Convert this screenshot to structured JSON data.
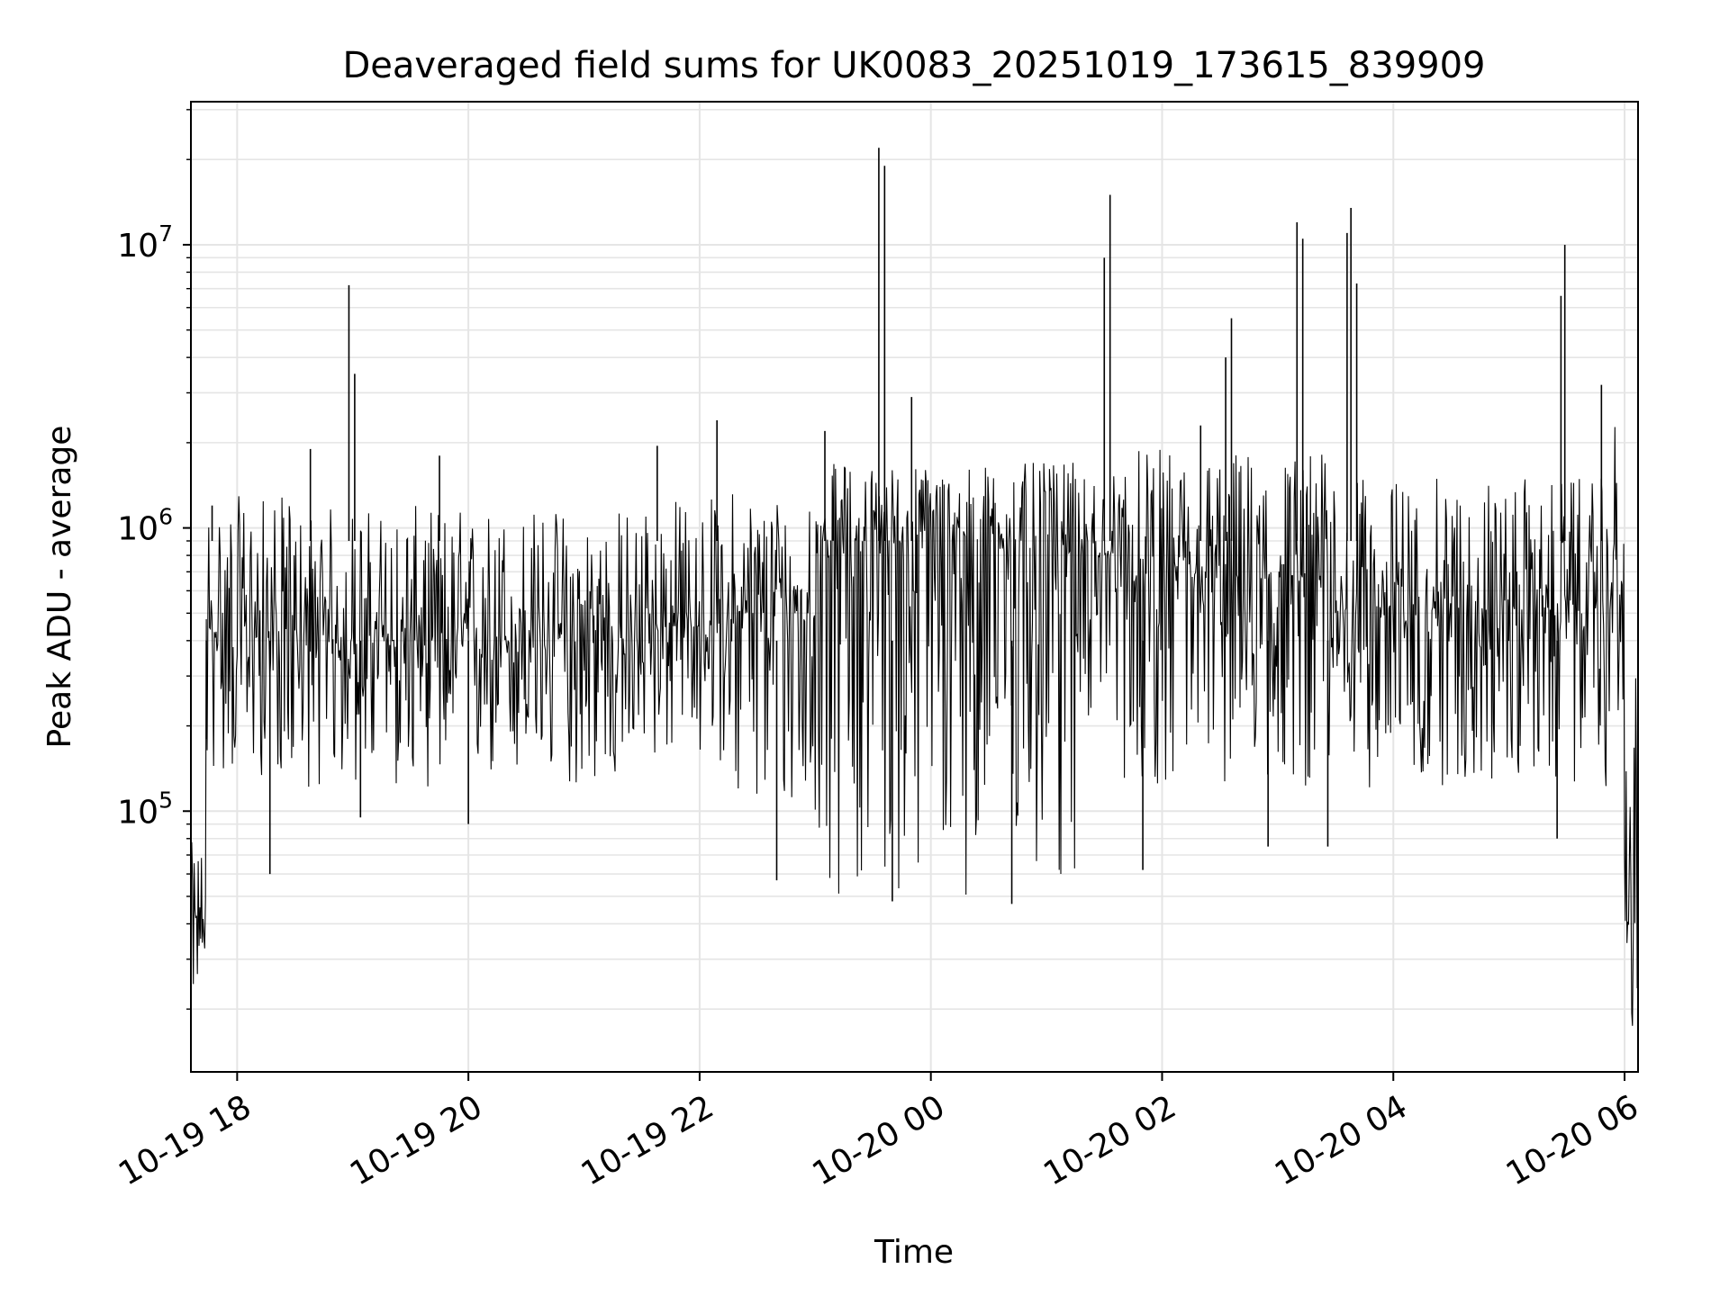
{
  "chart_data": {
    "type": "line",
    "title": "Deaveraged field sums for UK0083_20251019_173615_839909",
    "xlabel": "Time",
    "ylabel": "Peak ADU - average",
    "x_range": [
      "2025-10-19 17:36",
      "2025-10-20 06:07"
    ],
    "ylim": [
      12000,
      32000000
    ],
    "yscale": "log",
    "grid": true,
    "legend": "none",
    "line_color": "#000000",
    "grid_color": "#e5e5e5",
    "x_ticks": [
      "10-19 18",
      "10-19 20",
      "10-19 22",
      "10-20 00",
      "10-20 02",
      "10-20 04",
      "10-20 06"
    ],
    "y_ticks": [
      {
        "base": "10",
        "exp": "5"
      },
      {
        "base": "10",
        "exp": "6"
      },
      {
        "base": "10",
        "exp": "7"
      }
    ],
    "segments": [
      {
        "start": "2025-10-19 17:36",
        "end": "2025-10-19 17:44",
        "low": 22000,
        "high": 78000,
        "center": 40000
      },
      {
        "start": "2025-10-19 17:44",
        "end": "2025-10-19 18:30",
        "low": 130000,
        "high": 1300000,
        "center": 430000
      },
      {
        "start": "2025-10-19 18:30",
        "end": "2025-10-19 21:30",
        "low": 120000,
        "high": 1200000,
        "center": 400000
      },
      {
        "start": "2025-10-19 21:30",
        "end": "2025-10-19 22:15",
        "low": 150000,
        "high": 1300000,
        "center": 450000
      },
      {
        "start": "2025-10-19 22:15",
        "end": "2025-10-19 23:00",
        "low": 90000,
        "high": 1400000,
        "center": 500000
      },
      {
        "start": "2025-10-19 23:00",
        "end": "2025-10-20 01:15",
        "low": 50000,
        "high": 1700000,
        "center": 900000
      },
      {
        "start": "2025-10-20 01:15",
        "end": "2025-10-20 01:40",
        "low": 200000,
        "high": 1600000,
        "center": 800000
      },
      {
        "start": "2025-10-20 01:40",
        "end": "2025-10-20 03:30",
        "low": 120000,
        "high": 1900000,
        "center": 650000
      },
      {
        "start": "2025-10-20 03:30",
        "end": "2025-10-20 05:55",
        "low": 120000,
        "high": 1500000,
        "center": 520000
      },
      {
        "start": "2025-10-20 05:55",
        "end": "2025-10-20 06:00",
        "low": 200000,
        "high": 2500000,
        "center": 600000
      },
      {
        "start": "2025-10-20 06:00",
        "end": "2025-10-20 06:07",
        "low": 15000,
        "high": 300000,
        "center": 40000
      }
    ],
    "spikes": [
      {
        "x": "2025-10-19 17:44",
        "y": 180000
      },
      {
        "x": "2025-10-19 17:47",
        "y": 1200000
      },
      {
        "x": "2025-10-19 18:17",
        "y": 60000
      },
      {
        "x": "2025-10-19 18:38",
        "y": 1900000
      },
      {
        "x": "2025-10-19 18:58",
        "y": 7200000
      },
      {
        "x": "2025-10-19 19:01",
        "y": 3500000
      },
      {
        "x": "2025-10-19 19:04",
        "y": 95000
      },
      {
        "x": "2025-10-19 19:45",
        "y": 1800000
      },
      {
        "x": "2025-10-19 20:00",
        "y": 90000
      },
      {
        "x": "2025-10-19 21:38",
        "y": 1950000
      },
      {
        "x": "2025-10-19 22:09",
        "y": 2400000
      },
      {
        "x": "2025-10-19 22:40",
        "y": 57000
      },
      {
        "x": "2025-10-19 23:05",
        "y": 2200000
      },
      {
        "x": "2025-10-19 23:33",
        "y": 22000000
      },
      {
        "x": "2025-10-19 23:36",
        "y": 19000000
      },
      {
        "x": "2025-10-19 23:40",
        "y": 48000
      },
      {
        "x": "2025-10-19 23:50",
        "y": 2900000
      },
      {
        "x": "2025-10-20 00:42",
        "y": 47000
      },
      {
        "x": "2025-10-20 01:30",
        "y": 9000000
      },
      {
        "x": "2025-10-20 01:33",
        "y": 15000000
      },
      {
        "x": "2025-10-20 01:50",
        "y": 62000
      },
      {
        "x": "2025-10-20 02:20",
        "y": 2300000
      },
      {
        "x": "2025-10-20 02:33",
        "y": 4000000
      },
      {
        "x": "2025-10-20 02:36",
        "y": 5500000
      },
      {
        "x": "2025-10-20 02:55",
        "y": 75000
      },
      {
        "x": "2025-10-20 03:10",
        "y": 12000000
      },
      {
        "x": "2025-10-20 03:13",
        "y": 10500000
      },
      {
        "x": "2025-10-20 03:26",
        "y": 75000
      },
      {
        "x": "2025-10-20 03:36",
        "y": 11000000
      },
      {
        "x": "2025-10-20 03:38",
        "y": 13500000
      },
      {
        "x": "2025-10-20 03:41",
        "y": 7300000
      },
      {
        "x": "2025-10-20 05:25",
        "y": 80000
      },
      {
        "x": "2025-10-20 05:27",
        "y": 6600000
      },
      {
        "x": "2025-10-20 05:29",
        "y": 10000000
      },
      {
        "x": "2025-10-20 05:48",
        "y": 3200000
      }
    ]
  }
}
